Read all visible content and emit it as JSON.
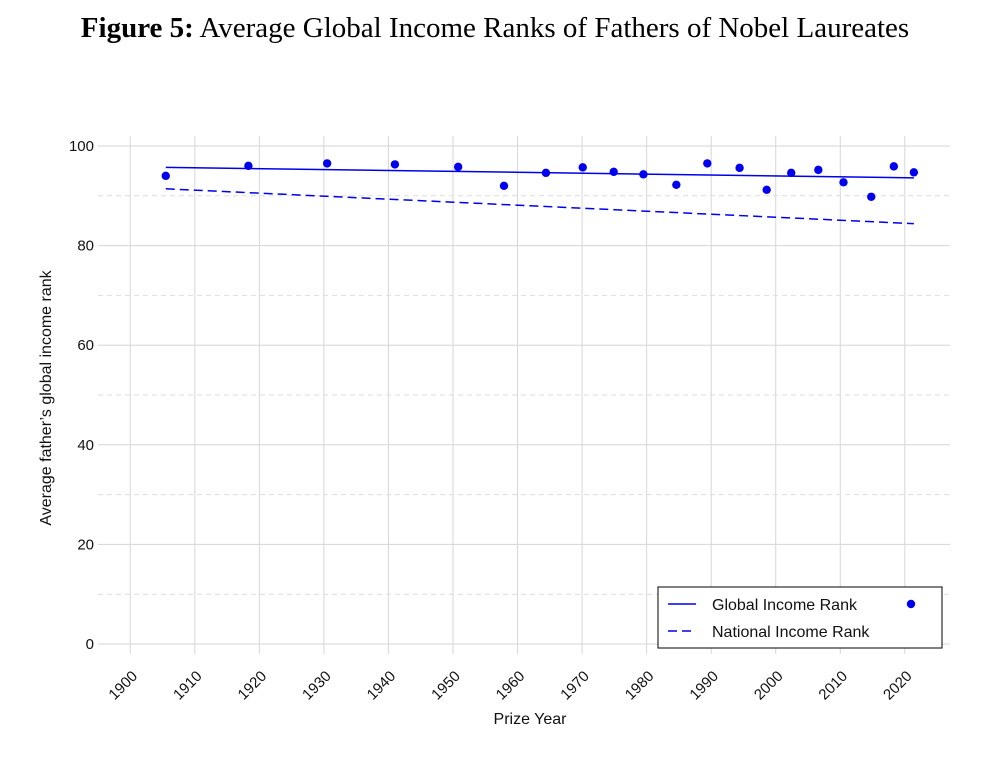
{
  "chart_data": {
    "type": "scatter",
    "title_prefix": "Figure 5:",
    "title": "Average Global Income Ranks of Fathers of Nobel Laureates",
    "xlabel": "Prize Year",
    "ylabel": "Average father’s global income rank",
    "xlim": [
      1895,
      2027
    ],
    "ylim": [
      -2,
      102
    ],
    "x_ticks": [
      1900,
      1910,
      1920,
      1930,
      1940,
      1950,
      1960,
      1970,
      1980,
      1990,
      2000,
      2010,
      2020
    ],
    "y_ticks": [
      0,
      20,
      40,
      60,
      80,
      100
    ],
    "y_minor_ticks": [
      10,
      30,
      50,
      70,
      90
    ],
    "grid": true,
    "legend_position": "bottom-right",
    "series": [
      {
        "name": "Global Income Rank",
        "kind": "points",
        "color": "#0000ee",
        "x": [
          1905.5,
          1918.3,
          1930.5,
          1941,
          1950.8,
          1957.9,
          1964.4,
          1970.1,
          1974.9,
          1979.5,
          1984.6,
          1989.4,
          1994.4,
          1998.6,
          2002.4,
          2006.6,
          2010.5,
          2014.8,
          2018.3,
          2021.4
        ],
        "y": [
          94,
          96,
          96.5,
          96.3,
          95.8,
          92,
          94.6,
          95.7,
          94.8,
          94.3,
          92.2,
          96.5,
          95.6,
          91.2,
          94.6,
          95.2,
          92.7,
          89.8,
          95.9,
          94.7
        ]
      },
      {
        "name": "Global Income Rank",
        "kind": "line",
        "color": "#0000ee",
        "x": [
          1905.5,
          2021.4
        ],
        "y": [
          95.7,
          93.6
        ]
      },
      {
        "name": "National Income Rank",
        "kind": "dashed-line",
        "color": "#0000ee",
        "x": [
          1905.5,
          2021.4
        ],
        "y": [
          91.4,
          84.4
        ]
      }
    ],
    "legend": [
      {
        "label": "Global Income Rank",
        "line": "solid",
        "marker": "point"
      },
      {
        "label": "National Income Rank",
        "line": "dashed"
      }
    ]
  }
}
